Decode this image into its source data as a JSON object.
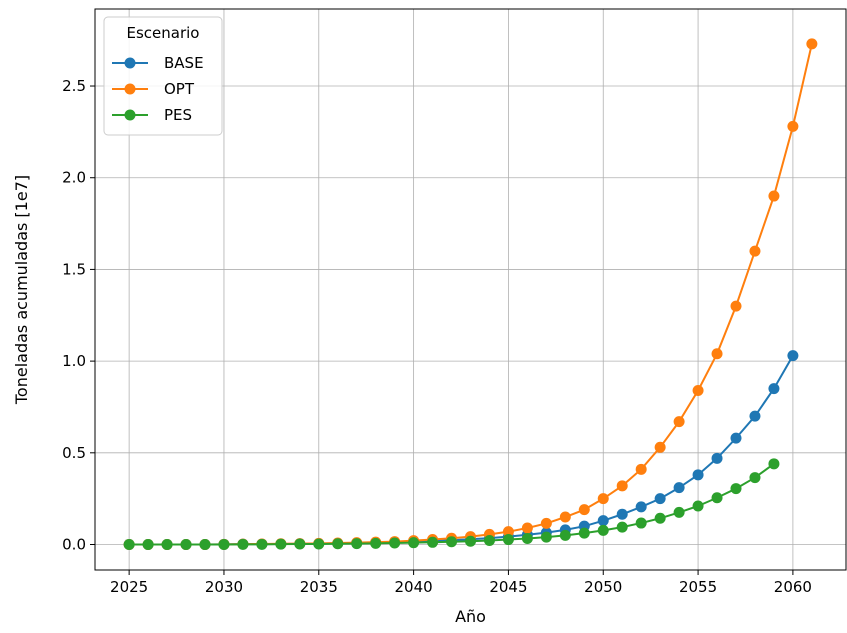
{
  "chart_data": {
    "type": "line",
    "xlabel": "Año",
    "ylabel": "Toneladas acumuladas [1e7]",
    "xlim": [
      2023.2,
      2062.8
    ],
    "ylim": [
      -0.139,
      2.92
    ],
    "x_ticks": [
      2025,
      2030,
      2035,
      2040,
      2045,
      2050,
      2055,
      2060
    ],
    "y_ticks": [
      0.0,
      0.5,
      1.0,
      1.5,
      2.0,
      2.5
    ],
    "x_tick_labels": [
      "2025",
      "2030",
      "2035",
      "2040",
      "2045",
      "2050",
      "2055",
      "2060"
    ],
    "y_tick_labels": [
      "0.0",
      "0.5",
      "1.0",
      "1.5",
      "2.0",
      "2.5"
    ],
    "grid": true,
    "legend": {
      "title": "Escenario",
      "placement": "top-left"
    },
    "series": [
      {
        "name": "BASE",
        "color": "#1f77b4",
        "x": [
          2025,
          2026,
          2027,
          2028,
          2029,
          2030,
          2031,
          2032,
          2033,
          2034,
          2035,
          2036,
          2037,
          2038,
          2039,
          2040,
          2041,
          2042,
          2043,
          2044,
          2045,
          2046,
          2047,
          2048,
          2049,
          2050,
          2051,
          2052,
          2053,
          2054,
          2055,
          2056,
          2057,
          2058,
          2059,
          2060
        ],
        "y": [
          0.0,
          0.0,
          0.0,
          0.0,
          0.0,
          0.001,
          0.002,
          0.002,
          0.003,
          0.004,
          0.005,
          0.006,
          0.008,
          0.01,
          0.012,
          0.015,
          0.019,
          0.023,
          0.029,
          0.035,
          0.043,
          0.053,
          0.065,
          0.08,
          0.1,
          0.13,
          0.165,
          0.205,
          0.25,
          0.31,
          0.38,
          0.47,
          0.58,
          0.7,
          0.85,
          1.03
        ]
      },
      {
        "name": "OPT",
        "color": "#ff7f0e",
        "x": [
          2025,
          2026,
          2027,
          2028,
          2029,
          2030,
          2031,
          2032,
          2033,
          2034,
          2035,
          2036,
          2037,
          2038,
          2039,
          2040,
          2041,
          2042,
          2043,
          2044,
          2045,
          2046,
          2047,
          2048,
          2049,
          2050,
          2051,
          2052,
          2053,
          2054,
          2055,
          2056,
          2057,
          2058,
          2059,
          2060,
          2061
        ],
        "y": [
          0.0,
          0.0,
          0.0,
          0.0,
          0.0,
          0.001,
          0.002,
          0.003,
          0.004,
          0.005,
          0.006,
          0.008,
          0.01,
          0.013,
          0.016,
          0.021,
          0.027,
          0.034,
          0.043,
          0.055,
          0.07,
          0.09,
          0.115,
          0.15,
          0.19,
          0.25,
          0.32,
          0.41,
          0.53,
          0.67,
          0.84,
          1.04,
          1.3,
          1.6,
          1.9,
          2.28,
          2.73
        ]
      },
      {
        "name": "PES",
        "color": "#2ca02c",
        "x": [
          2025,
          2026,
          2027,
          2028,
          2029,
          2030,
          2031,
          2032,
          2033,
          2034,
          2035,
          2036,
          2037,
          2038,
          2039,
          2040,
          2041,
          2042,
          2043,
          2044,
          2045,
          2046,
          2047,
          2048,
          2049,
          2050,
          2051,
          2052,
          2053,
          2054,
          2055,
          2056,
          2057,
          2058,
          2059
        ],
        "y": [
          0.0,
          0.0,
          0.0,
          0.0,
          0.0,
          0.0,
          0.001,
          0.001,
          0.002,
          0.003,
          0.003,
          0.004,
          0.005,
          0.006,
          0.008,
          0.01,
          0.012,
          0.015,
          0.018,
          0.022,
          0.027,
          0.033,
          0.04,
          0.05,
          0.062,
          0.077,
          0.095,
          0.117,
          0.143,
          0.175,
          0.21,
          0.255,
          0.305,
          0.365,
          0.44
        ]
      }
    ]
  }
}
